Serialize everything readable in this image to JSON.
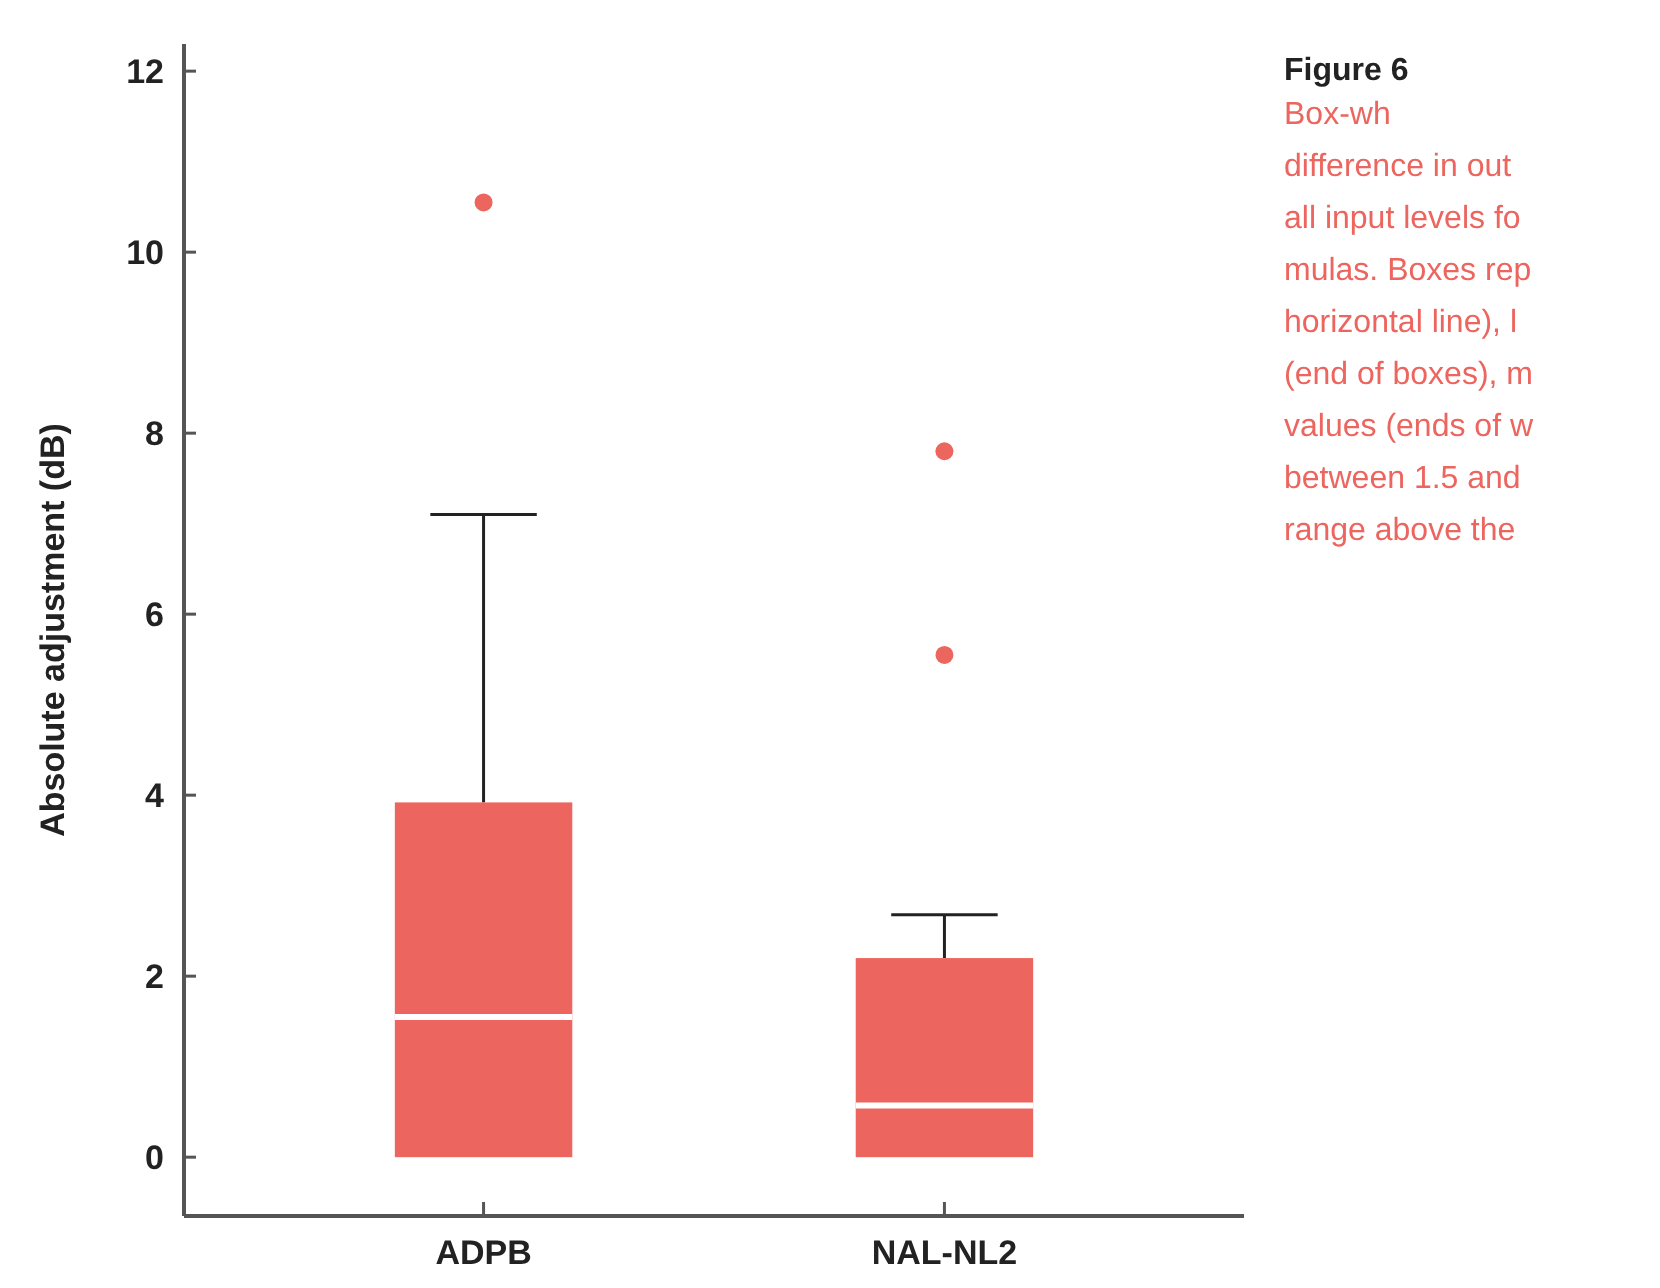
{
  "chart_data": {
    "type": "box",
    "title": "Figure 6",
    "ylabel": "Absolute adjustment  (dB)",
    "categories": [
      "ADPB",
      "NAL-NL2"
    ],
    "series": [
      {
        "color": "#ec655e",
        "boxes": [
          {
            "low": 0,
            "q1": 0,
            "median": 1.55,
            "q3": 3.92,
            "high": 7.1,
            "outliers": [
              10.55
            ]
          },
          {
            "low": 0,
            "q1": 0,
            "median": 0.57,
            "q3": 2.2,
            "high": 2.68,
            "outliers": [
              7.8,
              5.55
            ]
          }
        ]
      }
    ],
    "ylim": [
      -0.65,
      12.3
    ],
    "yticks": [
      0,
      2,
      4,
      6,
      8,
      10,
      12
    ],
    "grid": false,
    "annotations": [
      "Box-wh",
      "difference in out",
      "all input levels fo",
      "mulas. Boxes rep",
      "horizontal line), l",
      "(end of boxes), m",
      "values (ends of w",
      "between 1.5 and",
      "range above the"
    ]
  }
}
